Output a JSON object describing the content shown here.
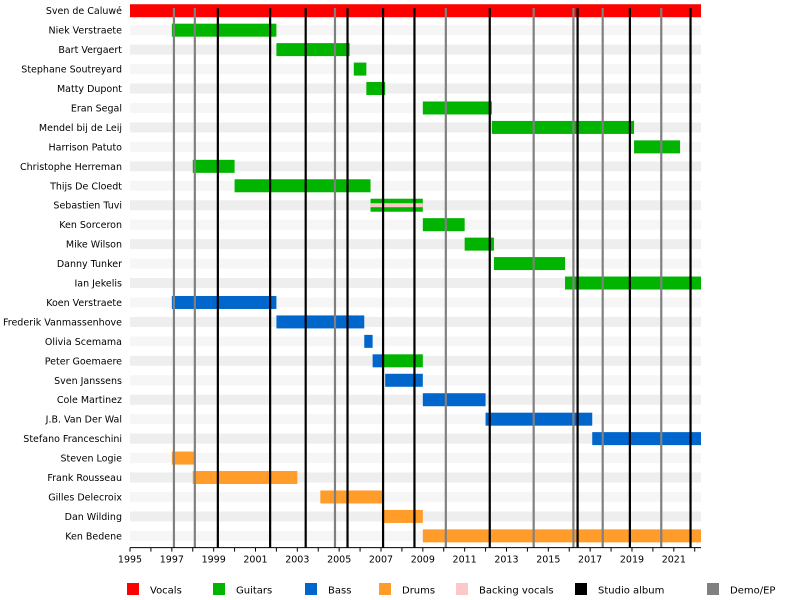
{
  "chart_data": {
    "type": "timeline",
    "x_range": [
      1995,
      2022.3
    ],
    "x_ticks": [
      1995,
      1996,
      1997,
      1998,
      1999,
      2000,
      2001,
      2002,
      2003,
      2004,
      2005,
      2006,
      2007,
      2008,
      2009,
      2010,
      2011,
      2012,
      2013,
      2014,
      2015,
      2016,
      2017,
      2018,
      2019,
      2020,
      2021,
      2022
    ],
    "x_tick_labels": [
      {
        "value": 1995,
        "label": "1995"
      },
      {
        "value": 1997,
        "label": "1997"
      },
      {
        "value": 1999,
        "label": "1999"
      },
      {
        "value": 2001,
        "label": "2001"
      },
      {
        "value": 2003,
        "label": "2003"
      },
      {
        "value": 2005,
        "label": "2005"
      },
      {
        "value": 2007,
        "label": "2007"
      },
      {
        "value": 2009,
        "label": "2009"
      },
      {
        "value": 2011,
        "label": "2011"
      },
      {
        "value": 2013,
        "label": "2013"
      },
      {
        "value": 2015,
        "label": "2015"
      },
      {
        "value": 2017,
        "label": "2017"
      },
      {
        "value": 2019,
        "label": "2019"
      },
      {
        "value": 2021,
        "label": "2021"
      }
    ],
    "roles": [
      {
        "key": "vocals",
        "name": "Vocals",
        "color": "#ff0000"
      },
      {
        "key": "guitars",
        "name": "Guitars",
        "color": "#00b400"
      },
      {
        "key": "bass",
        "name": "Bass",
        "color": "#0066cc"
      },
      {
        "key": "drums",
        "name": "Drums",
        "color": "#ff9c2a"
      },
      {
        "key": "backing",
        "name": "Backing vocals",
        "color": "#ffc8c8"
      },
      {
        "key": "studio",
        "name": "Studio album",
        "color": "#000000"
      },
      {
        "key": "demo",
        "name": "Demo/EP",
        "color": "#808080"
      }
    ],
    "members": [
      {
        "name": "Sven de Caluwé",
        "periods": [
          {
            "role": "vocals",
            "start": 1995,
            "end": 2022.3
          }
        ]
      },
      {
        "name": "Niek Verstraete",
        "periods": [
          {
            "role": "guitars",
            "start": 1997,
            "end": 2002
          }
        ]
      },
      {
        "name": "Bart Vergaert",
        "periods": [
          {
            "role": "guitars",
            "start": 2002,
            "end": 2005.5
          }
        ]
      },
      {
        "name": "Stephane Soutreyard",
        "periods": [
          {
            "role": "guitars",
            "start": 2005.7,
            "end": 2006.3
          }
        ]
      },
      {
        "name": "Matty Dupont",
        "periods": [
          {
            "role": "guitars",
            "start": 2006.3,
            "end": 2007.2
          }
        ]
      },
      {
        "name": "Eran Segal",
        "periods": [
          {
            "role": "guitars",
            "start": 2009,
            "end": 2012.3
          }
        ]
      },
      {
        "name": "Mendel bij de Leij",
        "periods": [
          {
            "role": "guitars",
            "start": 2012.3,
            "end": 2019.1
          }
        ]
      },
      {
        "name": "Harrison Patuto",
        "periods": [
          {
            "role": "guitars",
            "start": 2019.1,
            "end": 2021.3
          }
        ]
      },
      {
        "name": "Christophe Herreman",
        "periods": [
          {
            "role": "guitars",
            "start": 1998,
            "end": 2000
          }
        ]
      },
      {
        "name": "Thijs De Cloedt",
        "periods": [
          {
            "role": "guitars",
            "start": 2000,
            "end": 2006.5
          }
        ]
      },
      {
        "name": "Sebastien Tuvi",
        "periods": [
          {
            "role": "guitars",
            "start": 2006.5,
            "end": 2009
          },
          {
            "role": "backing",
            "start": 2006.5,
            "end": 2009,
            "thin": true
          }
        ]
      },
      {
        "name": "Ken Sorceron",
        "periods": [
          {
            "role": "guitars",
            "start": 2009,
            "end": 2011
          }
        ]
      },
      {
        "name": "Mike Wilson",
        "periods": [
          {
            "role": "guitars",
            "start": 2011,
            "end": 2012.4
          }
        ]
      },
      {
        "name": "Danny Tunker",
        "periods": [
          {
            "role": "guitars",
            "start": 2012.4,
            "end": 2015.8
          }
        ]
      },
      {
        "name": "Ian Jekelis",
        "periods": [
          {
            "role": "guitars",
            "start": 2015.8,
            "end": 2022.3
          }
        ]
      },
      {
        "name": "Koen Verstraete",
        "periods": [
          {
            "role": "bass",
            "start": 1997,
            "end": 2002
          }
        ]
      },
      {
        "name": "Frederik Vanmassenhove",
        "periods": [
          {
            "role": "bass",
            "start": 2002,
            "end": 2006.2
          }
        ]
      },
      {
        "name": "Olivia Scemama",
        "periods": [
          {
            "role": "bass",
            "start": 2006.2,
            "end": 2006.6
          }
        ]
      },
      {
        "name": "Peter Goemaere",
        "periods": [
          {
            "role": "bass",
            "start": 2006.6,
            "end": 2007.1
          },
          {
            "role": "guitars",
            "start": 2007.1,
            "end": 2009
          }
        ]
      },
      {
        "name": "Sven Janssens",
        "periods": [
          {
            "role": "bass",
            "start": 2007.2,
            "end": 2009
          }
        ]
      },
      {
        "name": "Cole Martinez",
        "periods": [
          {
            "role": "bass",
            "start": 2009,
            "end": 2012
          }
        ]
      },
      {
        "name": "J.B. Van Der Wal",
        "periods": [
          {
            "role": "bass",
            "start": 2012,
            "end": 2017.1
          }
        ]
      },
      {
        "name": "Stefano Franceschini",
        "periods": [
          {
            "role": "bass",
            "start": 2017.1,
            "end": 2022.3
          }
        ]
      },
      {
        "name": "Steven Logie",
        "periods": [
          {
            "role": "drums",
            "start": 1997,
            "end": 1998.1
          }
        ]
      },
      {
        "name": "Frank Rousseau",
        "periods": [
          {
            "role": "drums",
            "start": 1998,
            "end": 2003
          }
        ]
      },
      {
        "name": "Gilles Delecroix",
        "periods": [
          {
            "role": "drums",
            "start": 2004.1,
            "end": 2007.1
          }
        ]
      },
      {
        "name": "Dan Wilding",
        "periods": [
          {
            "role": "drums",
            "start": 2007.1,
            "end": 2009
          }
        ]
      },
      {
        "name": "Ken Bedene",
        "periods": [
          {
            "role": "drums",
            "start": 2009,
            "end": 2022.3
          }
        ]
      }
    ],
    "studio_albums": [
      1999.2,
      2001.7,
      2003.4,
      2005.4,
      2007.1,
      2008.6,
      2012.2,
      2016.4,
      2018.9,
      2021.8
    ],
    "demos": [
      1997.1,
      1998.1,
      2004.8,
      2010.1,
      2014.3,
      2016.2,
      2017.6,
      2020.4
    ]
  }
}
